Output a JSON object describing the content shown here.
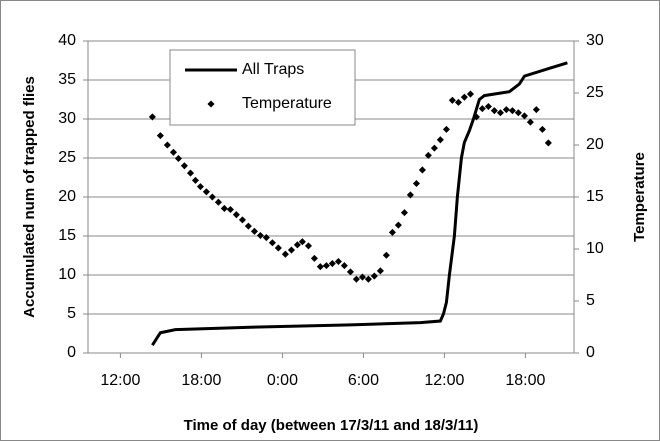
{
  "chart_data": {
    "type": "line",
    "y_label": "Accumulated num of trapped flies",
    "y2_label": "Temperature",
    "x_label": "Time of day (between 17/3/11 and 18/3/11)",
    "xlim": [
      9.6,
      45.6
    ],
    "xticks": [
      {
        "value": 12,
        "label": "12:00"
      },
      {
        "value": 18,
        "label": "18:00"
      },
      {
        "value": 24,
        "label": "0:00"
      },
      {
        "value": 30,
        "label": "6:00"
      },
      {
        "value": 36,
        "label": "12:00"
      },
      {
        "value": 42,
        "label": "18:00"
      }
    ],
    "ylim": [
      0,
      40
    ],
    "yticks": [
      0,
      5,
      10,
      15,
      20,
      25,
      30,
      35,
      40
    ],
    "y2lim": [
      0,
      30
    ],
    "y2ticks": [
      0,
      5,
      10,
      15,
      20,
      25,
      30
    ],
    "grid": true,
    "legend": "upper left",
    "series": [
      {
        "name": "All Traps",
        "color": "#000000",
        "style": "line",
        "x": [
          14.37,
          14.96,
          16.07,
          21.63,
          29.04,
          34.22,
          35.7,
          35.93,
          36.15,
          36.37,
          36.74,
          36.96,
          37.26,
          37.48,
          37.85,
          38.15,
          38.59,
          38.96,
          40.81,
          41.19,
          41.56,
          41.93,
          43.78,
          45.11
        ],
        "values": [
          1,
          2.6,
          3.0,
          3.3,
          3.6,
          3.9,
          4.1,
          5,
          6.5,
          10,
          15,
          20,
          25,
          27,
          28.5,
          30,
          32.5,
          33,
          33.5,
          34,
          34.5,
          35.5,
          36.5,
          37.2
        ]
      },
      {
        "name": "Temperature",
        "color": "#000000",
        "style": "markers",
        "axis": "y2",
        "x": [
          14.37,
          14.96,
          15.48,
          15.93,
          16.3,
          16.74,
          17.19,
          17.56,
          17.93,
          18.37,
          18.81,
          19.26,
          19.7,
          20.15,
          20.59,
          21.04,
          21.48,
          21.93,
          22.37,
          22.81,
          23.26,
          23.7,
          24.22,
          24.67,
          25.11,
          25.48,
          25.93,
          26.37,
          26.81,
          27.26,
          27.7,
          28.15,
          28.59,
          29.04,
          29.48,
          29.93,
          30.37,
          30.81,
          31.26,
          31.7,
          32.15,
          32.59,
          33.04,
          33.48,
          33.93,
          34.37,
          34.81,
          35.26,
          35.7,
          36.15,
          36.59,
          37.04,
          37.48,
          37.93,
          38.37,
          38.81,
          39.26,
          39.7,
          40.15,
          40.59,
          41.04,
          41.48,
          41.93,
          42.37,
          42.81,
          43.26,
          43.7
        ],
        "values": [
          22.7,
          20.9,
          20.0,
          19.3,
          18.7,
          18.0,
          17.3,
          16.6,
          16.0,
          15.5,
          15.0,
          14.5,
          13.9,
          13.8,
          13.3,
          12.8,
          12.2,
          11.7,
          11.3,
          11.1,
          10.6,
          10.1,
          9.5,
          9.9,
          10.4,
          10.7,
          10.3,
          9.1,
          8.3,
          8.4,
          8.6,
          8.8,
          8.4,
          7.8,
          7.1,
          7.3,
          7.1,
          7.4,
          7.9,
          9.4,
          11.6,
          12.3,
          13.5,
          15.2,
          16.3,
          17.6,
          19.0,
          19.7,
          20.5,
          21.5,
          24.3,
          24.1,
          24.6,
          24.9,
          22.7,
          23.5,
          23.7,
          23.3,
          23.1,
          23.4,
          23.3,
          23.1,
          22.8,
          22.2,
          23.4,
          21.5,
          20.2
        ]
      }
    ]
  }
}
